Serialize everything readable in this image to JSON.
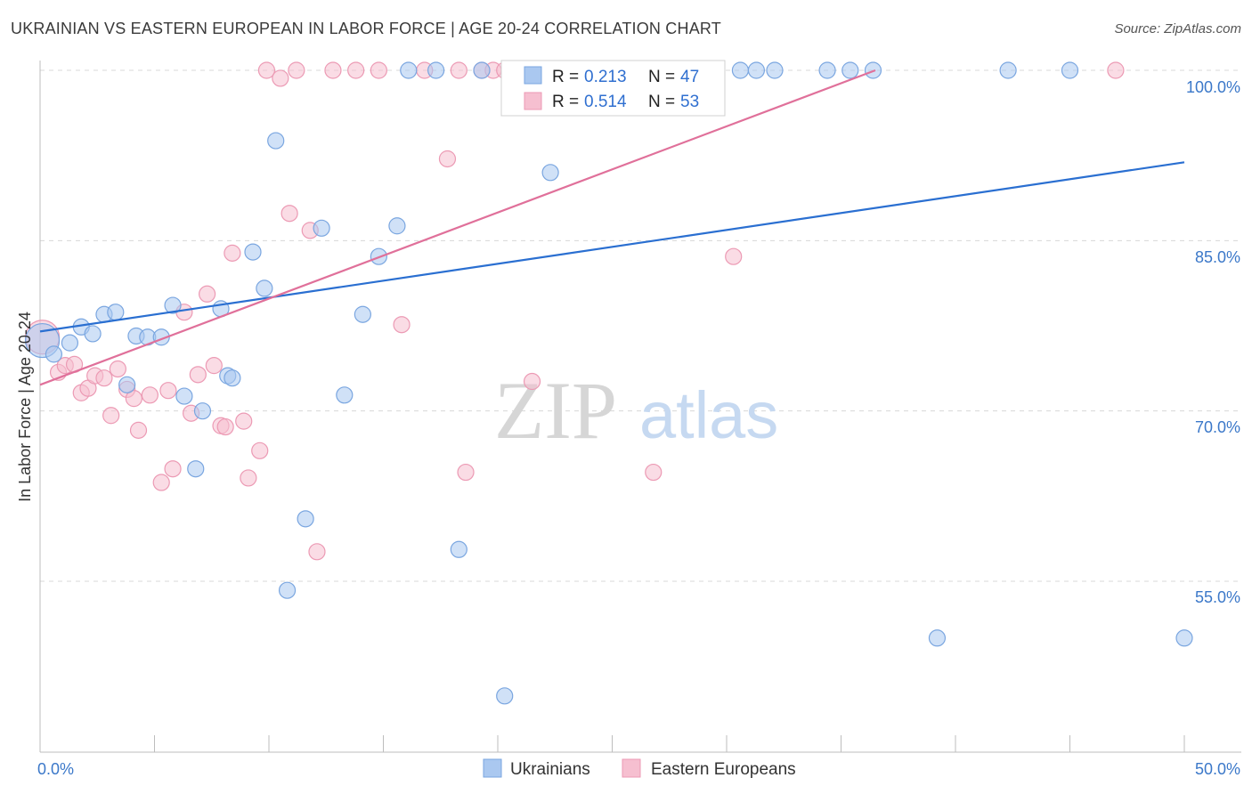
{
  "title": "UKRAINIAN VS EASTERN EUROPEAN IN LABOR FORCE | AGE 20-24 CORRELATION CHART",
  "source": "Source: ZipAtlas.com",
  "watermark": {
    "zip": "ZIP",
    "atlas": "atlas"
  },
  "colors": {
    "blue_fill": "#aac8f0",
    "blue_stroke": "#7aa6e0",
    "blue_line": "#2a6fd1",
    "pink_fill": "#f6bfd0",
    "pink_stroke": "#ec9ab4",
    "pink_line": "#e0709a",
    "grid": "#d8d8d8",
    "tick_label": "#3b78c9"
  },
  "legend_top": {
    "rows": [
      {
        "r_label": "R = ",
        "r_value": "0.213",
        "n_label": "N = ",
        "n_value": "47"
      },
      {
        "r_label": "R = ",
        "r_value": "0.514",
        "n_label": "N = ",
        "n_value": "53"
      }
    ]
  },
  "legend_bottom": [
    "Ukrainians",
    "Eastern Europeans"
  ],
  "chart_data": {
    "type": "scatter",
    "title": "UKRAINIAN VS EASTERN EUROPEAN IN LABOR FORCE | AGE 20-24 CORRELATION CHART",
    "xlabel": "",
    "ylabel": "In Labor Force | Age 20-24",
    "xlim": [
      0,
      50
    ],
    "ylim": [
      40,
      102
    ],
    "x_tick_labels": [
      "0.0%",
      "50.0%"
    ],
    "y_ticks": [
      55,
      70,
      85,
      100
    ],
    "y_tick_labels": [
      "55.0%",
      "70.0%",
      "85.0%",
      "100.0%"
    ],
    "grid": "horizontal dashed",
    "legend_placement": "top-center and bottom",
    "series": [
      {
        "name": "Ukrainians",
        "r": 0.213,
        "n": 47,
        "trend": {
          "x": [
            0,
            50
          ],
          "y": [
            77.0,
            91.9
          ]
        },
        "points": [
          [
            0.1,
            76.2
          ],
          [
            0.6,
            75.0
          ],
          [
            1.3,
            76.0
          ],
          [
            1.8,
            77.4
          ],
          [
            2.3,
            76.8
          ],
          [
            2.8,
            78.5
          ],
          [
            3.3,
            78.7
          ],
          [
            3.8,
            72.3
          ],
          [
            4.2,
            76.6
          ],
          [
            4.7,
            76.5
          ],
          [
            5.3,
            76.5
          ],
          [
            5.8,
            79.3
          ],
          [
            6.3,
            71.3
          ],
          [
            6.8,
            64.9
          ],
          [
            7.1,
            70.0
          ],
          [
            7.9,
            79.0
          ],
          [
            8.2,
            73.1
          ],
          [
            8.4,
            72.9
          ],
          [
            9.3,
            84.0
          ],
          [
            9.8,
            80.8
          ],
          [
            10.3,
            93.8
          ],
          [
            10.8,
            54.2
          ],
          [
            11.6,
            60.5
          ],
          [
            12.3,
            86.1
          ],
          [
            13.3,
            71.4
          ],
          [
            14.1,
            78.5
          ],
          [
            14.8,
            83.6
          ],
          [
            15.6,
            86.3
          ],
          [
            16.1,
            100.0
          ],
          [
            17.3,
            100.0
          ],
          [
            18.3,
            57.8
          ],
          [
            19.3,
            100.0
          ],
          [
            20.3,
            44.9
          ],
          [
            22.3,
            91.0
          ],
          [
            23.3,
            100.0
          ],
          [
            25.8,
            100.0
          ],
          [
            28.8,
            100.0
          ],
          [
            30.6,
            100.0
          ],
          [
            31.3,
            100.0
          ],
          [
            32.1,
            100.0
          ],
          [
            34.4,
            100.0
          ],
          [
            35.4,
            100.0
          ],
          [
            36.4,
            100.0
          ],
          [
            42.3,
            100.0
          ],
          [
            45.0,
            100.0
          ],
          [
            39.2,
            50.0
          ],
          [
            50.0,
            50.0
          ]
        ]
      },
      {
        "name": "Eastern Europeans",
        "r": 0.514,
        "n": 53,
        "trend": {
          "x": [
            0,
            36.5
          ],
          "y": [
            72.3,
            100.0
          ]
        },
        "points": [
          [
            0.1,
            76.5
          ],
          [
            0.8,
            73.4
          ],
          [
            1.1,
            74.0
          ],
          [
            1.5,
            74.1
          ],
          [
            1.8,
            71.6
          ],
          [
            2.1,
            72.0
          ],
          [
            2.4,
            73.1
          ],
          [
            2.8,
            72.9
          ],
          [
            3.1,
            69.6
          ],
          [
            3.4,
            73.7
          ],
          [
            3.8,
            71.9
          ],
          [
            4.1,
            71.1
          ],
          [
            4.3,
            68.3
          ],
          [
            4.8,
            71.4
          ],
          [
            5.3,
            63.7
          ],
          [
            5.6,
            71.8
          ],
          [
            5.8,
            64.9
          ],
          [
            6.3,
            78.7
          ],
          [
            6.6,
            69.8
          ],
          [
            6.9,
            73.2
          ],
          [
            7.3,
            80.3
          ],
          [
            7.6,
            74.0
          ],
          [
            7.9,
            68.7
          ],
          [
            8.1,
            68.6
          ],
          [
            8.4,
            83.9
          ],
          [
            8.9,
            69.1
          ],
          [
            9.1,
            64.1
          ],
          [
            9.6,
            66.5
          ],
          [
            9.9,
            100.0
          ],
          [
            10.5,
            99.3
          ],
          [
            10.9,
            87.4
          ],
          [
            11.2,
            100.0
          ],
          [
            11.8,
            85.9
          ],
          [
            12.1,
            57.6
          ],
          [
            12.8,
            100.0
          ],
          [
            13.8,
            100.0
          ],
          [
            14.8,
            100.0
          ],
          [
            15.8,
            77.6
          ],
          [
            16.8,
            100.0
          ],
          [
            17.8,
            92.2
          ],
          [
            18.3,
            100.0
          ],
          [
            18.6,
            64.6
          ],
          [
            19.3,
            100.0
          ],
          [
            19.8,
            100.0
          ],
          [
            20.3,
            100.0
          ],
          [
            21.1,
            100.0
          ],
          [
            21.5,
            72.6
          ],
          [
            22.8,
            100.0
          ],
          [
            24.3,
            100.0
          ],
          [
            25.8,
            100.0
          ],
          [
            26.8,
            64.6
          ],
          [
            30.3,
            83.6
          ],
          [
            47.0,
            100.0
          ]
        ]
      }
    ]
  }
}
